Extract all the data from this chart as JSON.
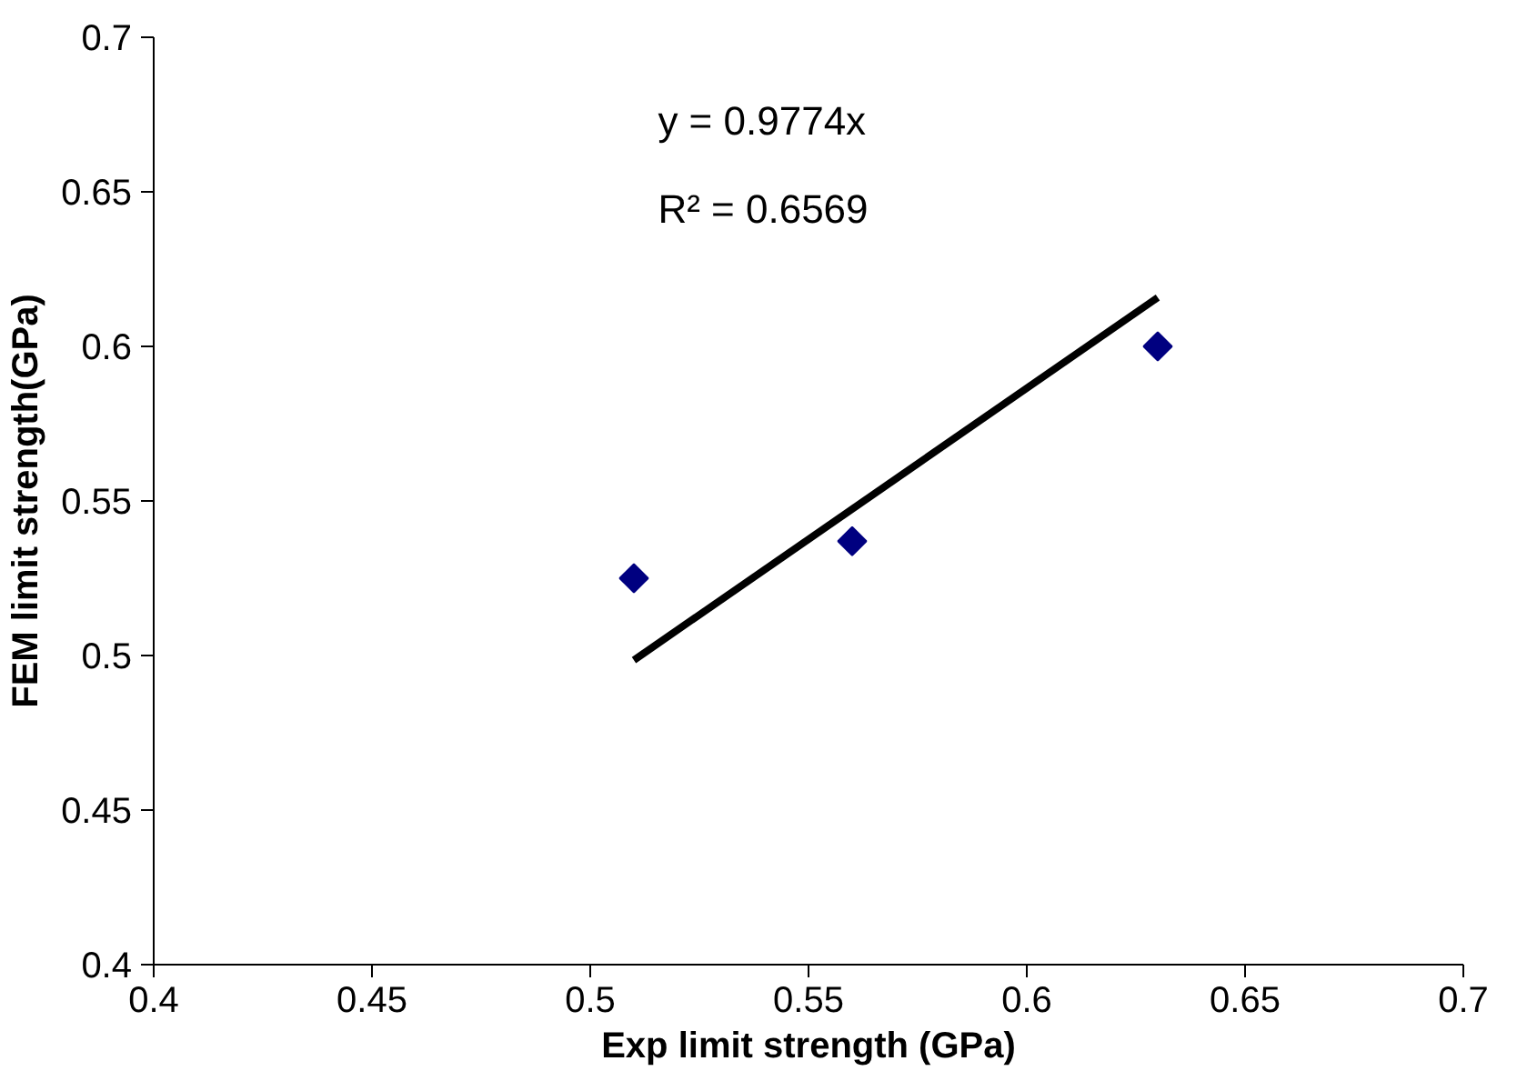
{
  "chart_data": {
    "type": "scatter",
    "xlabel": "Exp limit strength (GPa)",
    "ylabel": "FEM limit strength(GPa)",
    "xlim": [
      0.4,
      0.7
    ],
    "ylim": [
      0.4,
      0.7
    ],
    "xticks": [
      0.4,
      0.45,
      0.5,
      0.55,
      0.6,
      0.65,
      0.7
    ],
    "yticks": [
      0.4,
      0.45,
      0.5,
      0.55,
      0.6,
      0.65,
      0.7
    ],
    "grid": false,
    "series": [
      {
        "color": "#000080",
        "x": [
          0.51,
          0.56,
          0.63
        ],
        "values": [
          0.525,
          0.537,
          0.6
        ],
        "marker": "diamond"
      },
      {
        "type": "line",
        "color": "#000000",
        "x": [
          0.51,
          0.63
        ],
        "values": [
          0.4985,
          0.6158
        ],
        "line_style": "solid",
        "marker": "none"
      }
    ],
    "annotations": [
      "y = 0.9774x",
      "R² = 0.6569"
    ]
  }
}
